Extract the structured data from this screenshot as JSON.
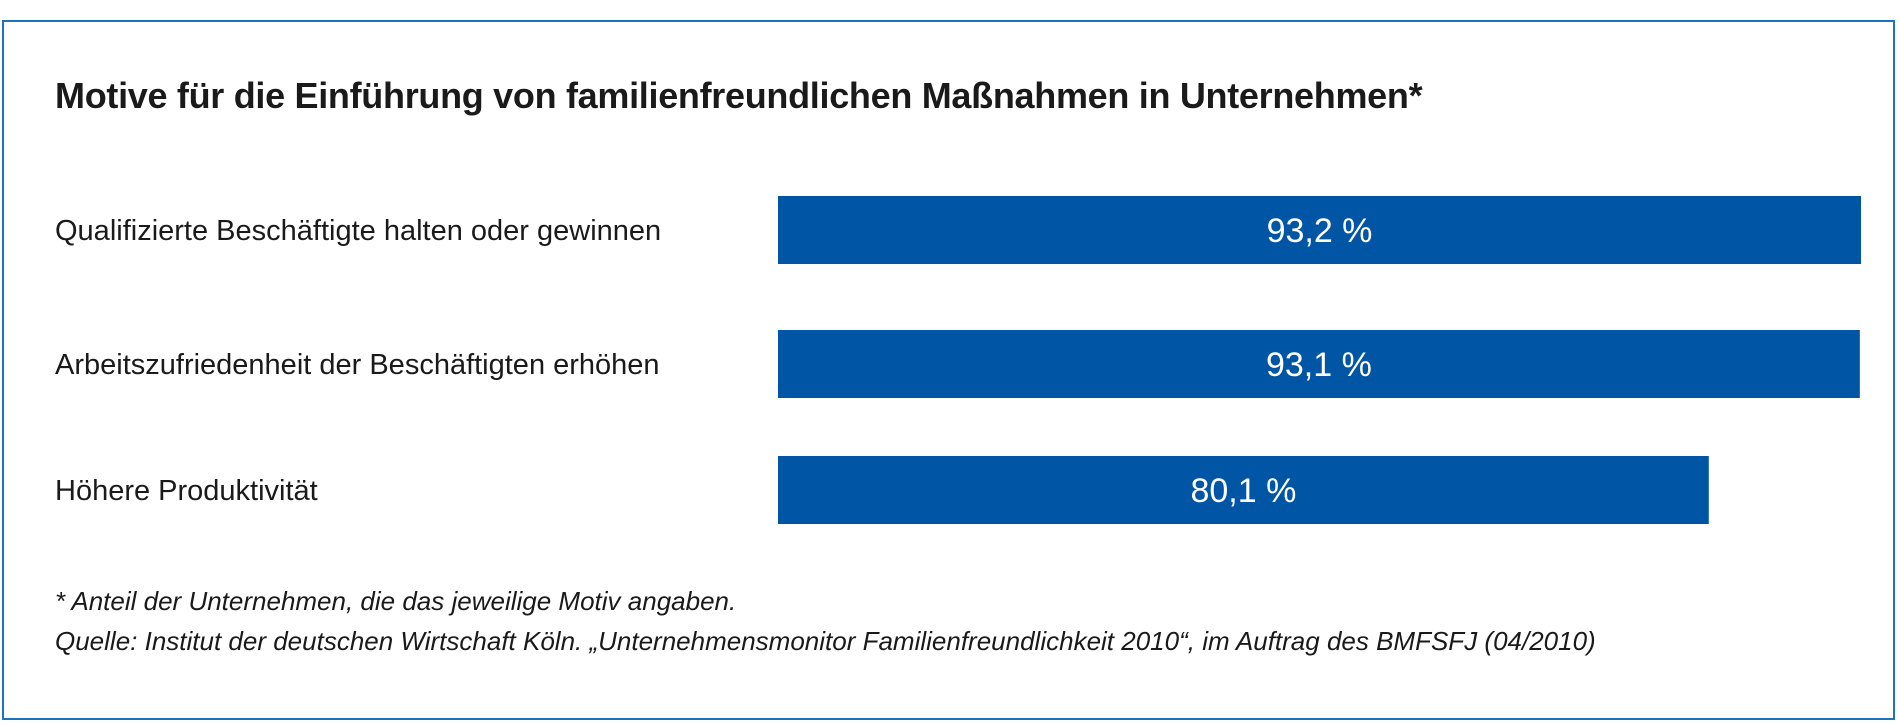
{
  "chart_data": {
    "type": "bar",
    "orientation": "horizontal",
    "title": "Motive für die Einführung von familienfreundlichen Maßnahmen in Unternehmen*",
    "categories": [
      "Qualifizierte Beschäftigte halten oder gewinnen",
      "Arbeitszufriedenheit der Beschäftigten erhöhen",
      "Höhere Produktivität"
    ],
    "values": [
      93.2,
      93.1,
      80.1
    ],
    "value_labels": [
      "93,2 %",
      "93,1 %",
      "80,1 %"
    ],
    "unit": "%",
    "xlim": [
      0,
      100
    ],
    "grid": false,
    "bar_color": "#0055a5",
    "frame_color": "#1e73be"
  },
  "footnotes": {
    "note": "* Anteil der Unternehmen, die das jeweilige Motiv angaben.",
    "source": "Quelle: Institut der deutschen Wirtschaft Köln. „Unternehmensmonitor Familienfreundlichkeit 2010“, im Auftrag des BMFSFJ (04/2010)"
  }
}
